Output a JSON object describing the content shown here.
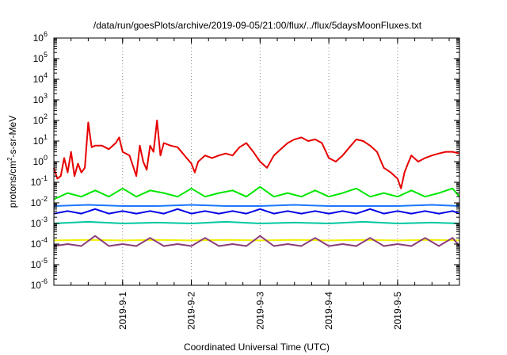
{
  "chart_data": {
    "type": "line",
    "title": "/data/run/goesPlots/archive/2019-09-05/21:00/flux/../flux/5daysMoonFluxes.txt",
    "xlabel": "Coordinated Universal Time (UTC)",
    "ylabel": "protons/cm²-s-sr-MeV",
    "yscale": "log",
    "ylim": [
      1e-06,
      1000000.0
    ],
    "xlim": [
      0,
      5.9
    ],
    "grid": "vertical dotted lines at day ticks",
    "legend": "none",
    "x_ticks": [
      {
        "x": 1,
        "label": "2019-9-1"
      },
      {
        "x": 2,
        "label": "2019-9-2"
      },
      {
        "x": 3,
        "label": "2019-9-3"
      },
      {
        "x": 4,
        "label": "2019-9-4"
      },
      {
        "x": 5,
        "label": "2019-9-5"
      }
    ],
    "y_ticks": [
      {
        "v": 1e-06,
        "base": "10",
        "exp": "-6"
      },
      {
        "v": 1e-05,
        "base": "10",
        "exp": "-5"
      },
      {
        "v": 0.0001,
        "base": "10",
        "exp": "-4"
      },
      {
        "v": 0.001,
        "base": "10",
        "exp": "-3"
      },
      {
        "v": 0.01,
        "base": "10",
        "exp": "-2"
      },
      {
        "v": 0.1,
        "base": "10",
        "exp": "-1"
      },
      {
        "v": 1.0,
        "base": "10",
        "exp": "0"
      },
      {
        "v": 10.0,
        "base": "10",
        "exp": "1"
      },
      {
        "v": 100.0,
        "base": "10",
        "exp": "2"
      },
      {
        "v": 1000.0,
        "base": "10",
        "exp": "3"
      },
      {
        "v": 10000.0,
        "base": "10",
        "exp": "4"
      },
      {
        "v": 100000.0,
        "base": "10",
        "exp": "5"
      },
      {
        "v": 1000000.0,
        "base": "10",
        "exp": "6"
      }
    ],
    "series": [
      {
        "color": "#e60000",
        "x": [
          0.0,
          0.05,
          0.1,
          0.15,
          0.2,
          0.25,
          0.3,
          0.35,
          0.4,
          0.45,
          0.5,
          0.55,
          0.6,
          0.7,
          0.8,
          0.9,
          0.95,
          1.0,
          1.1,
          1.2,
          1.25,
          1.3,
          1.35,
          1.4,
          1.45,
          1.5,
          1.55,
          1.6,
          1.7,
          1.8,
          1.9,
          2.0,
          2.05,
          2.1,
          2.2,
          2.3,
          2.4,
          2.5,
          2.6,
          2.7,
          2.8,
          2.9,
          3.0,
          3.1,
          3.2,
          3.3,
          3.4,
          3.5,
          3.6,
          3.7,
          3.8,
          3.9,
          4.0,
          4.1,
          4.2,
          4.3,
          4.4,
          4.5,
          4.6,
          4.7,
          4.8,
          4.9,
          5.0,
          5.05,
          5.1,
          5.15,
          5.2,
          5.3,
          5.4,
          5.5,
          5.6,
          5.7,
          5.8,
          5.9
        ],
        "y": [
          0.5,
          0.15,
          0.2,
          1.5,
          0.3,
          3,
          0.2,
          0.8,
          0.3,
          0.5,
          80,
          5,
          6,
          6,
          4,
          8,
          15,
          3,
          2,
          0.2,
          6,
          1,
          0.4,
          6,
          3,
          100,
          2,
          8,
          6,
          5,
          2,
          0.8,
          0.3,
          1,
          2,
          1.5,
          2,
          2.5,
          2,
          5,
          8,
          3,
          1,
          0.5,
          2,
          4,
          8,
          12,
          15,
          10,
          12,
          8,
          1.5,
          1,
          2,
          5,
          12,
          10,
          6,
          3,
          0.5,
          0.3,
          0.15,
          0.05,
          0.3,
          0.8,
          2,
          1,
          1.5,
          2,
          2.5,
          3,
          3,
          2.5
        ]
      },
      {
        "color": "#00e600",
        "x": [
          0.0,
          0.2,
          0.4,
          0.6,
          0.8,
          1.0,
          1.2,
          1.4,
          1.6,
          1.8,
          2.0,
          2.2,
          2.4,
          2.6,
          2.8,
          3.0,
          3.2,
          3.4,
          3.6,
          3.8,
          4.0,
          4.2,
          4.4,
          4.6,
          4.8,
          5.0,
          5.2,
          5.4,
          5.6,
          5.8,
          5.9
        ],
        "y": [
          0.015,
          0.03,
          0.02,
          0.04,
          0.02,
          0.05,
          0.02,
          0.04,
          0.03,
          0.02,
          0.05,
          0.02,
          0.03,
          0.04,
          0.02,
          0.06,
          0.02,
          0.03,
          0.02,
          0.04,
          0.02,
          0.03,
          0.05,
          0.02,
          0.03,
          0.02,
          0.04,
          0.02,
          0.03,
          0.05,
          0.02
        ]
      },
      {
        "color": "#1e78ff",
        "x": [
          0.0,
          0.5,
          1.0,
          1.5,
          2.0,
          2.5,
          3.0,
          3.5,
          4.0,
          4.5,
          5.0,
          5.5,
          5.9
        ],
        "y": [
          0.007,
          0.008,
          0.007,
          0.007,
          0.008,
          0.007,
          0.007,
          0.008,
          0.007,
          0.007,
          0.007,
          0.008,
          0.007
        ]
      },
      {
        "color": "#0000e6",
        "x": [
          0.0,
          0.2,
          0.4,
          0.6,
          0.8,
          1.0,
          1.2,
          1.4,
          1.6,
          1.8,
          2.0,
          2.2,
          2.4,
          2.6,
          2.8,
          3.0,
          3.2,
          3.4,
          3.6,
          3.8,
          4.0,
          4.2,
          4.4,
          4.6,
          4.8,
          5.0,
          5.2,
          5.4,
          5.6,
          5.8,
          5.9
        ],
        "y": [
          0.003,
          0.004,
          0.003,
          0.005,
          0.003,
          0.004,
          0.003,
          0.004,
          0.003,
          0.005,
          0.003,
          0.004,
          0.003,
          0.004,
          0.003,
          0.005,
          0.003,
          0.004,
          0.003,
          0.004,
          0.003,
          0.004,
          0.003,
          0.005,
          0.003,
          0.004,
          0.003,
          0.004,
          0.003,
          0.004,
          0.003
        ]
      },
      {
        "color": "#00c8a0",
        "x": [
          0.0,
          0.5,
          1.0,
          1.5,
          2.0,
          2.5,
          3.0,
          3.5,
          4.0,
          4.5,
          5.0,
          5.5,
          5.9
        ],
        "y": [
          0.001,
          0.0012,
          0.001,
          0.0011,
          0.001,
          0.0012,
          0.001,
          0.0011,
          0.001,
          0.0012,
          0.001,
          0.0011,
          0.001
        ]
      },
      {
        "color": "#f0f000",
        "x": [
          0.0,
          0.5,
          1.0,
          1.5,
          2.0,
          2.5,
          3.0,
          3.5,
          4.0,
          4.5,
          5.0,
          5.5,
          5.9
        ],
        "y": [
          0.00015,
          0.00016,
          0.00015,
          0.00016,
          0.00015,
          0.00016,
          0.00015,
          0.00016,
          0.00015,
          0.00016,
          0.00015,
          0.00016,
          0.00015
        ]
      },
      {
        "color": "#8c3c78",
        "x": [
          0.0,
          0.2,
          0.4,
          0.6,
          0.8,
          1.0,
          1.2,
          1.4,
          1.6,
          1.8,
          2.0,
          2.2,
          2.4,
          2.6,
          2.8,
          3.0,
          3.2,
          3.4,
          3.6,
          3.8,
          4.0,
          4.2,
          4.4,
          4.6,
          4.8,
          5.0,
          5.2,
          5.4,
          5.6,
          5.8,
          5.9
        ],
        "y": [
          8e-05,
          0.0001,
          8e-05,
          0.00025,
          8e-05,
          0.0001,
          8e-05,
          0.0002,
          8e-05,
          0.0001,
          8e-05,
          0.0002,
          8e-05,
          0.0001,
          8e-05,
          0.00025,
          8e-05,
          0.0001,
          8e-05,
          0.0002,
          8e-05,
          0.0001,
          8e-05,
          0.0002,
          8e-05,
          0.0001,
          8e-05,
          0.0002,
          8e-05,
          0.0002,
          8e-05
        ]
      }
    ]
  }
}
